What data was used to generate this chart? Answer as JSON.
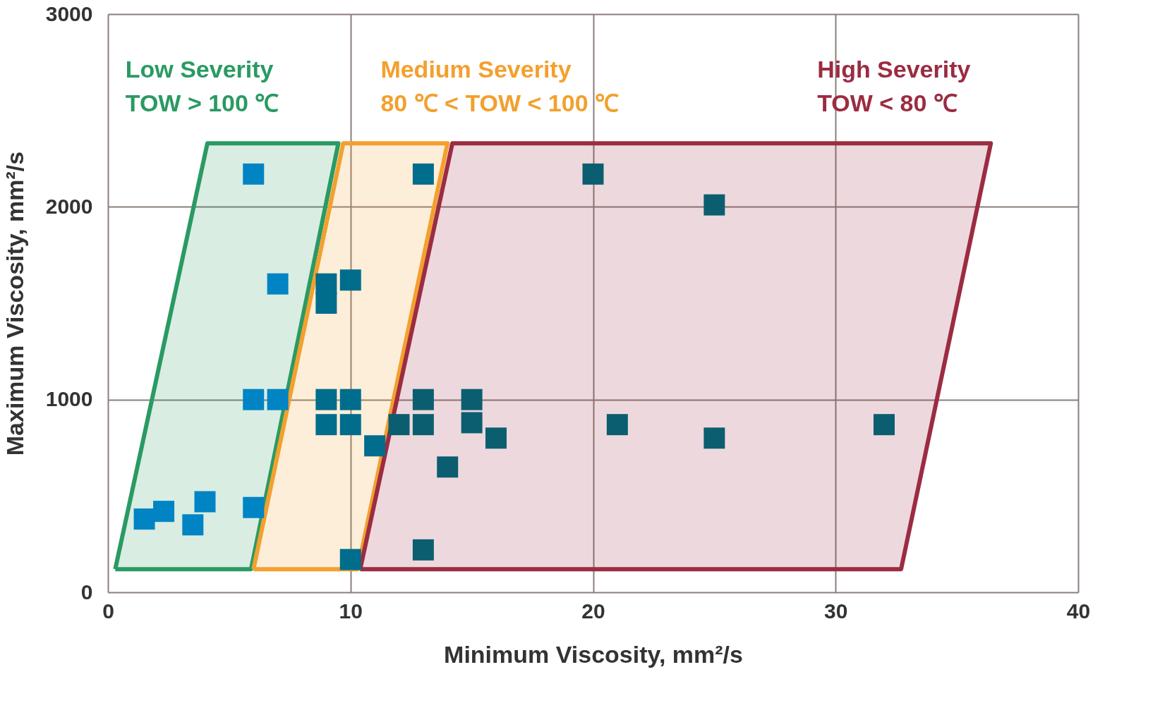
{
  "chart_data": {
    "type": "scatter",
    "xlabel": "Minimum Viscosity, mm²/s",
    "ylabel": "Maximum Viscosity, mm²/s",
    "xlim": [
      0,
      40
    ],
    "xticks": [
      0,
      10,
      20,
      30,
      40
    ],
    "ylim": [
      0,
      3000
    ],
    "yticks": [
      0,
      1000,
      2000,
      3000
    ],
    "grid": true,
    "marker": "square",
    "series": [
      {
        "type": "area",
        "marker": "none",
        "name": "Low Severity\nTOW  > 100 ℃",
        "color": "#2a9a63",
        "x": [
          0.3,
          4.1,
          9.5,
          5.9,
          0.3
        ],
        "values": [
          120,
          2330,
          2330,
          120,
          120
        ]
      },
      {
        "type": "area",
        "marker": "none",
        "name": "Medium Severity\n80 ℃ < TOW < 100 ℃",
        "color": "#f3a02e",
        "x": [
          6.0,
          9.7,
          14.0,
          10.3,
          6.0
        ],
        "values": [
          120,
          2330,
          2330,
          120,
          120
        ]
      },
      {
        "type": "area",
        "marker": "none",
        "name": "High Severity\nTOW < 80 ℃",
        "color": "#9b2c42",
        "x": [
          10.4,
          14.2,
          36.4,
          32.7,
          10.4
        ],
        "values": [
          120,
          2330,
          2330,
          120,
          120
        ]
      },
      {
        "color": "#0084c4",
        "x": [
          6,
          7,
          6,
          7,
          1.5,
          2.3,
          3.5,
          4,
          6
        ],
        "values": [
          2170,
          1600,
          1000,
          1000,
          380,
          420,
          350,
          470,
          440
        ]
      },
      {
        "color": "#006d8c",
        "x": [
          13,
          9,
          9,
          10,
          9,
          10,
          9,
          10,
          11,
          10
        ],
        "values": [
          2170,
          1600,
          1500,
          1620,
          1000,
          1000,
          870,
          870,
          760,
          170
        ]
      },
      {
        "color": "#0b5e70",
        "x": [
          20,
          25,
          13,
          15,
          12,
          13,
          15,
          21,
          32,
          16,
          25,
          14,
          13
        ],
        "values": [
          2170,
          2010,
          1000,
          1000,
          870,
          870,
          880,
          870,
          870,
          800,
          800,
          650,
          220
        ]
      }
    ]
  }
}
